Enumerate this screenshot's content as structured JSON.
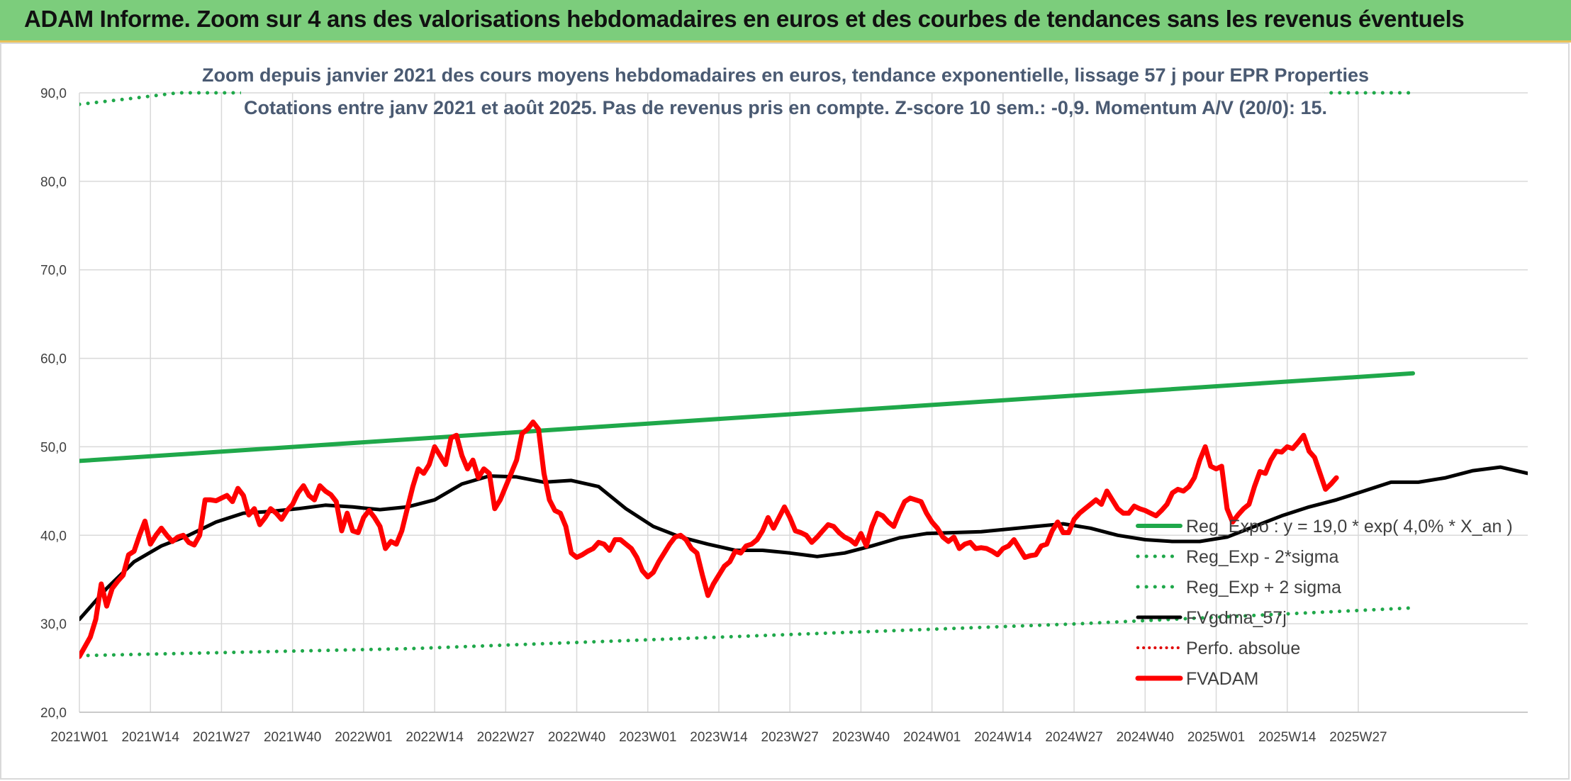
{
  "header": {
    "title": "ADAM Informe. Zoom sur 4 ans des valorisations hebdomadaires en euros et des courbes de tendances sans les revenus éventuels"
  },
  "colors": {
    "banner": "#7ccd7c",
    "reg_expo": "#1fa84a",
    "sigma": "#1fa84a",
    "smooth": "#000000",
    "perfo": "#e00000",
    "price": "#ff0000",
    "grid": "#d9d9d9"
  },
  "chart_data": {
    "type": "line",
    "title": "Zoom depuis janvier 2021 des cours moyens hebdomadaires en euros, tendance exponentielle, lissage 57 j pour EPR Properties",
    "subtitle": "Cotations entre janv 2021 et août 2025. Pas de revenus pris en compte. Z-score 10 sem.: -0,9. Momentum A/V (20/0): 15.",
    "xlabel": "",
    "ylabel": "",
    "ylim": [
      20,
      90
    ],
    "y_ticks": [
      "20,0",
      "30,0",
      "40,0",
      "50,0",
      "60,0",
      "70,0",
      "80,0",
      "90,0"
    ],
    "x_ticks": [
      "2021W01",
      "2021W14",
      "2021W27",
      "2021W40",
      "2022W01",
      "2022W14",
      "2022W27",
      "2022W40",
      "2023W01",
      "2023W14",
      "2023W27",
      "2023W40",
      "2024W01",
      "2024W14",
      "2024W27",
      "2024W40",
      "2025W01",
      "2025W14",
      "2025W27"
    ],
    "x_week_index_range": [
      0,
      244
    ],
    "grid": true,
    "legend_position": "right",
    "series": [
      {
        "name": "Reg_Expo : y = 19,0 * exp( 4,0% *  X_an )",
        "style": "solid-thick",
        "points": [
          [
            0,
            48.4
          ],
          [
            244,
            58.3
          ]
        ]
      },
      {
        "name": "Reg_Exp - 2*sigma",
        "style": "dotted",
        "points": [
          [
            0,
            26.4
          ],
          [
            61,
            27.2
          ],
          [
            122,
            28.6
          ],
          [
            183,
            30.0
          ],
          [
            244,
            31.8
          ]
        ]
      },
      {
        "name": "Reg_Exp + 2 sigma",
        "style": "dotted",
        "points": [
          [
            0,
            88.7
          ],
          [
            10,
            89.4
          ],
          [
            18,
            90.0
          ],
          [
            27,
            90.0
          ],
          [
            209,
            90.0
          ],
          [
            244,
            90.0
          ]
        ]
      },
      {
        "name": "FVgdma_57j",
        "style": "solid",
        "points": [
          [
            0,
            30.5
          ],
          [
            5,
            34.0
          ],
          [
            10,
            37.0
          ],
          [
            15,
            38.8
          ],
          [
            20,
            40.0
          ],
          [
            25,
            41.5
          ],
          [
            30,
            42.5
          ],
          [
            35,
            42.7
          ],
          [
            40,
            43.0
          ],
          [
            45,
            43.4
          ],
          [
            50,
            43.2
          ],
          [
            55,
            42.9
          ],
          [
            60,
            43.2
          ],
          [
            65,
            44.0
          ],
          [
            70,
            45.8
          ],
          [
            75,
            46.7
          ],
          [
            80,
            46.6
          ],
          [
            85,
            46.0
          ],
          [
            90,
            46.2
          ],
          [
            95,
            45.5
          ],
          [
            100,
            43.0
          ],
          [
            105,
            41.0
          ],
          [
            110,
            39.8
          ],
          [
            115,
            39.0
          ],
          [
            120,
            38.3
          ],
          [
            125,
            38.3
          ],
          [
            130,
            38.0
          ],
          [
            135,
            37.6
          ],
          [
            140,
            38.0
          ],
          [
            145,
            38.8
          ],
          [
            150,
            39.7
          ],
          [
            155,
            40.2
          ],
          [
            160,
            40.3
          ],
          [
            165,
            40.4
          ],
          [
            170,
            40.7
          ],
          [
            175,
            41.0
          ],
          [
            180,
            41.3
          ],
          [
            185,
            40.8
          ],
          [
            190,
            40.0
          ],
          [
            195,
            39.5
          ],
          [
            200,
            39.3
          ],
          [
            205,
            39.3
          ],
          [
            210,
            39.8
          ],
          [
            215,
            41.0
          ],
          [
            220,
            42.2
          ],
          [
            225,
            43.2
          ],
          [
            230,
            44.0
          ],
          [
            235,
            45.0
          ],
          [
            240,
            46.0
          ],
          [
            245,
            46.0
          ],
          [
            250,
            46.5
          ],
          [
            255,
            47.3
          ],
          [
            260,
            47.7
          ],
          [
            265,
            47.0
          ],
          [
            268,
            46.9
          ]
        ]
      },
      {
        "name": "Perfo. absolue",
        "style": "dotted",
        "points": []
      },
      {
        "name": "FVADAM",
        "style": "solid-thick",
        "points": [
          [
            0,
            26.3
          ],
          [
            2,
            28.5
          ],
          [
            3,
            30.5
          ],
          [
            4,
            34.5
          ],
          [
            5,
            32.0
          ],
          [
            6,
            34.0
          ],
          [
            7,
            34.8
          ],
          [
            8,
            35.5
          ],
          [
            9,
            37.8
          ],
          [
            10,
            38.2
          ],
          [
            11,
            40.0
          ],
          [
            12,
            41.6
          ],
          [
            13,
            39.0
          ],
          [
            14,
            40.0
          ],
          [
            15,
            40.8
          ],
          [
            16,
            40.0
          ],
          [
            17,
            39.3
          ],
          [
            18,
            39.8
          ],
          [
            19,
            40.0
          ],
          [
            20,
            39.2
          ],
          [
            21,
            38.9
          ],
          [
            22,
            40.0
          ],
          [
            23,
            44.0
          ],
          [
            24,
            44.0
          ],
          [
            25,
            43.9
          ],
          [
            26,
            44.2
          ],
          [
            27,
            44.5
          ],
          [
            28,
            43.8
          ],
          [
            29,
            45.3
          ],
          [
            30,
            44.5
          ],
          [
            31,
            42.3
          ],
          [
            32,
            43.0
          ],
          [
            33,
            41.2
          ],
          [
            34,
            42.0
          ],
          [
            35,
            43.0
          ],
          [
            36,
            42.5
          ],
          [
            37,
            41.8
          ],
          [
            38,
            42.8
          ],
          [
            39,
            43.5
          ],
          [
            40,
            44.8
          ],
          [
            41,
            45.6
          ],
          [
            42,
            44.5
          ],
          [
            43,
            44.0
          ],
          [
            44,
            45.6
          ],
          [
            45,
            45.0
          ],
          [
            46,
            44.6
          ],
          [
            47,
            43.8
          ],
          [
            48,
            40.5
          ],
          [
            49,
            42.5
          ],
          [
            50,
            40.5
          ],
          [
            51,
            40.3
          ],
          [
            52,
            42.0
          ],
          [
            53,
            42.8
          ],
          [
            54,
            42.0
          ],
          [
            55,
            41.0
          ],
          [
            56,
            38.5
          ],
          [
            57,
            39.3
          ],
          [
            58,
            39.0
          ],
          [
            59,
            40.5
          ],
          [
            60,
            43.0
          ],
          [
            61,
            45.5
          ],
          [
            62,
            47.5
          ],
          [
            63,
            47.0
          ],
          [
            64,
            48.0
          ],
          [
            65,
            50.0
          ],
          [
            66,
            49.0
          ],
          [
            67,
            48.0
          ],
          [
            68,
            51.0
          ],
          [
            69,
            51.3
          ],
          [
            70,
            49.0
          ],
          [
            71,
            47.5
          ],
          [
            72,
            48.5
          ],
          [
            73,
            46.5
          ],
          [
            74,
            47.5
          ],
          [
            75,
            47.0
          ],
          [
            76,
            43.0
          ],
          [
            77,
            44.0
          ],
          [
            78,
            45.5
          ],
          [
            79,
            47.0
          ],
          [
            80,
            48.5
          ],
          [
            81,
            51.5
          ],
          [
            82,
            52.0
          ],
          [
            83,
            52.8
          ],
          [
            84,
            52.0
          ],
          [
            85,
            47.0
          ],
          [
            86,
            44.0
          ],
          [
            87,
            42.8
          ],
          [
            88,
            42.5
          ],
          [
            89,
            41.0
          ],
          [
            90,
            38.0
          ],
          [
            91,
            37.5
          ],
          [
            92,
            37.8
          ],
          [
            93,
            38.2
          ],
          [
            94,
            38.5
          ],
          [
            95,
            39.2
          ],
          [
            96,
            39.0
          ],
          [
            97,
            38.3
          ],
          [
            98,
            39.5
          ],
          [
            99,
            39.5
          ],
          [
            100,
            39.0
          ],
          [
            101,
            38.5
          ],
          [
            102,
            37.5
          ],
          [
            103,
            36.0
          ],
          [
            104,
            35.3
          ],
          [
            105,
            35.8
          ],
          [
            106,
            37.0
          ],
          [
            107,
            38.0
          ],
          [
            108,
            39.0
          ],
          [
            109,
            39.8
          ],
          [
            110,
            40.0
          ],
          [
            111,
            39.5
          ],
          [
            112,
            38.5
          ],
          [
            113,
            38.0
          ],
          [
            114,
            35.5
          ],
          [
            115,
            33.2
          ],
          [
            116,
            34.5
          ],
          [
            117,
            35.5
          ],
          [
            118,
            36.5
          ],
          [
            119,
            37.0
          ],
          [
            120,
            38.2
          ],
          [
            121,
            38.0
          ],
          [
            122,
            38.8
          ],
          [
            123,
            39.0
          ],
          [
            124,
            39.5
          ],
          [
            125,
            40.5
          ],
          [
            126,
            42.0
          ],
          [
            127,
            40.8
          ],
          [
            128,
            42.0
          ],
          [
            129,
            43.2
          ],
          [
            130,
            42.0
          ],
          [
            131,
            40.5
          ],
          [
            132,
            40.3
          ],
          [
            133,
            40.0
          ],
          [
            134,
            39.2
          ],
          [
            135,
            39.8
          ],
          [
            136,
            40.5
          ],
          [
            137,
            41.2
          ],
          [
            138,
            41.0
          ],
          [
            139,
            40.3
          ],
          [
            140,
            39.8
          ],
          [
            141,
            39.5
          ],
          [
            142,
            39.0
          ],
          [
            143,
            40.2
          ],
          [
            144,
            38.8
          ],
          [
            145,
            41.0
          ],
          [
            146,
            42.5
          ],
          [
            147,
            42.2
          ],
          [
            148,
            41.5
          ],
          [
            149,
            41.0
          ],
          [
            150,
            42.5
          ],
          [
            151,
            43.8
          ],
          [
            152,
            44.2
          ],
          [
            153,
            44.0
          ],
          [
            154,
            43.8
          ],
          [
            155,
            42.5
          ],
          [
            156,
            41.5
          ],
          [
            157,
            40.8
          ],
          [
            158,
            39.8
          ],
          [
            159,
            39.3
          ],
          [
            160,
            39.8
          ],
          [
            161,
            38.5
          ],
          [
            162,
            39.0
          ],
          [
            163,
            39.2
          ],
          [
            164,
            38.5
          ],
          [
            165,
            38.6
          ],
          [
            166,
            38.5
          ],
          [
            167,
            38.2
          ],
          [
            168,
            37.8
          ],
          [
            169,
            38.5
          ],
          [
            170,
            38.8
          ],
          [
            171,
            39.5
          ],
          [
            172,
            38.5
          ],
          [
            173,
            37.5
          ],
          [
            174,
            37.7
          ],
          [
            175,
            37.8
          ],
          [
            176,
            38.8
          ],
          [
            177,
            39.0
          ],
          [
            178,
            40.5
          ],
          [
            179,
            41.5
          ],
          [
            180,
            40.3
          ],
          [
            181,
            40.3
          ],
          [
            182,
            41.8
          ],
          [
            183,
            42.5
          ],
          [
            184,
            43.0
          ],
          [
            185,
            43.5
          ],
          [
            186,
            44.0
          ],
          [
            187,
            43.5
          ],
          [
            188,
            45.0
          ],
          [
            189,
            44.0
          ],
          [
            190,
            43.0
          ],
          [
            191,
            42.5
          ],
          [
            192,
            42.5
          ],
          [
            193,
            43.3
          ],
          [
            194,
            43.0
          ],
          [
            195,
            42.8
          ],
          [
            196,
            42.5
          ],
          [
            197,
            42.2
          ],
          [
            198,
            42.8
          ],
          [
            199,
            43.5
          ],
          [
            200,
            44.8
          ],
          [
            201,
            45.2
          ],
          [
            202,
            45.0
          ],
          [
            203,
            45.5
          ],
          [
            204,
            46.5
          ],
          [
            205,
            48.5
          ],
          [
            206,
            50.0
          ],
          [
            207,
            47.8
          ],
          [
            208,
            47.5
          ],
          [
            209,
            47.8
          ],
          [
            210,
            43.0
          ],
          [
            211,
            41.5
          ],
          [
            212,
            42.3
          ],
          [
            213,
            43.0
          ],
          [
            214,
            43.5
          ],
          [
            215,
            45.5
          ],
          [
            216,
            47.2
          ],
          [
            217,
            47.0
          ],
          [
            218,
            48.5
          ],
          [
            219,
            49.5
          ],
          [
            220,
            49.4
          ],
          [
            221,
            50.0
          ],
          [
            222,
            49.8
          ],
          [
            223,
            50.5
          ],
          [
            224,
            51.3
          ],
          [
            225,
            49.5
          ],
          [
            226,
            48.8
          ],
          [
            227,
            47.0
          ],
          [
            228,
            45.2
          ],
          [
            229,
            45.8
          ],
          [
            230,
            46.5
          ]
        ]
      }
    ]
  }
}
